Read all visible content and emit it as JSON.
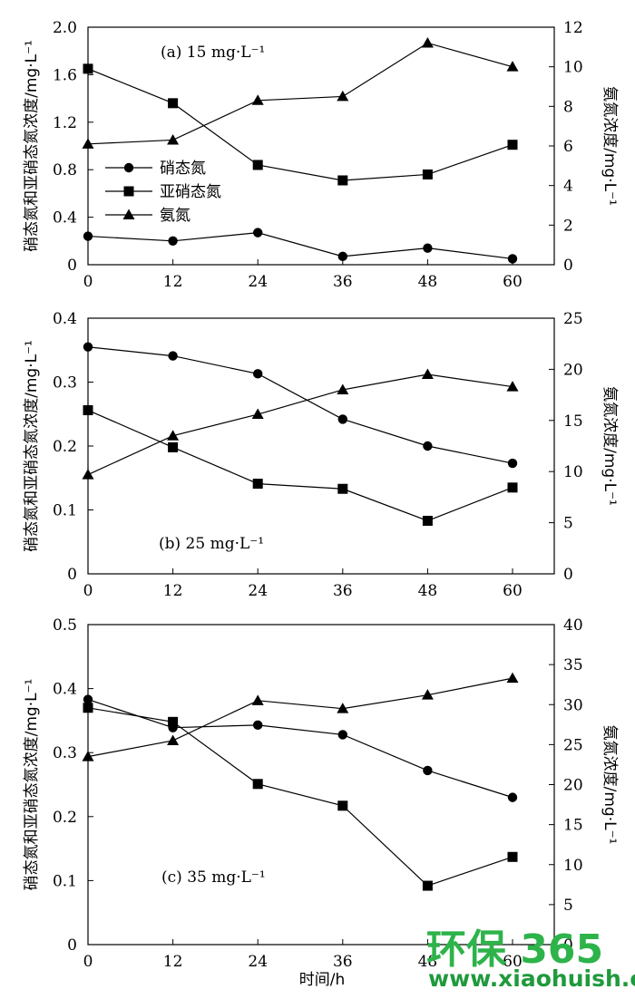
{
  "x_axis_label": "时间/h",
  "left_axis_label": "硝态氮和亚硝态氮浓度/mg·L⁻¹",
  "right_axis_label": "氨氮浓度/mg·L⁻¹",
  "legend": [
    "硝态氮",
    "亚硝态氮",
    "氨氮"
  ],
  "watermark": {
    "brand": "环保 365",
    "url": "www.xiaohuish.com",
    "color": "#2db34a"
  },
  "chart_data": [
    {
      "type": "line",
      "annotation": "(a) 15 mg·L⁻¹",
      "x": [
        0,
        12,
        24,
        36,
        48,
        60
      ],
      "xlim": [
        0,
        60
      ],
      "x_ticks": [
        0,
        12,
        24,
        36,
        48,
        60
      ],
      "ylim_left": [
        0,
        2.0
      ],
      "y_ticks_left": [
        "0",
        "0.4",
        "0.8",
        "1.2",
        "1.6",
        "2.0"
      ],
      "ylim_right": [
        0,
        12
      ],
      "y_ticks_right": [
        "0",
        "2",
        "4",
        "6",
        "8",
        "10",
        "12"
      ],
      "series": [
        {
          "name": "硝态氮",
          "axis": "left",
          "marker": "circle",
          "values": [
            0.24,
            0.2,
            0.27,
            0.07,
            0.14,
            0.05
          ]
        },
        {
          "name": "亚硝态氮",
          "axis": "left",
          "marker": "square",
          "values": [
            1.65,
            1.36,
            0.84,
            0.71,
            0.76,
            1.01
          ]
        },
        {
          "name": "氨氮",
          "axis": "right",
          "marker": "triangle",
          "values": [
            6.1,
            6.3,
            8.3,
            8.5,
            11.2,
            10.0
          ]
        }
      ]
    },
    {
      "type": "line",
      "annotation": "(b) 25 mg·L⁻¹",
      "x": [
        0,
        12,
        24,
        36,
        48,
        60
      ],
      "xlim": [
        0,
        60
      ],
      "x_ticks": [
        0,
        12,
        24,
        36,
        48,
        60
      ],
      "ylim_left": [
        0,
        0.4
      ],
      "y_ticks_left": [
        "0",
        "0.1",
        "0.2",
        "0.3",
        "0.4"
      ],
      "ylim_right": [
        0,
        25
      ],
      "y_ticks_right": [
        "0",
        "5",
        "10",
        "15",
        "20",
        "25"
      ],
      "series": [
        {
          "name": "硝态氮",
          "axis": "left",
          "marker": "circle",
          "values": [
            0.355,
            0.341,
            0.313,
            0.242,
            0.2,
            0.173
          ]
        },
        {
          "name": "亚硝态氮",
          "axis": "left",
          "marker": "square",
          "values": [
            0.256,
            0.198,
            0.141,
            0.133,
            0.083,
            0.135
          ]
        },
        {
          "name": "氨氮",
          "axis": "right",
          "marker": "triangle",
          "values": [
            9.7,
            13.5,
            15.6,
            18.0,
            19.5,
            18.3
          ]
        }
      ]
    },
    {
      "type": "line",
      "annotation": "(c) 35 mg·L⁻¹",
      "x": [
        0,
        12,
        24,
        36,
        48,
        60
      ],
      "xlim": [
        0,
        60
      ],
      "x_ticks": [
        0,
        12,
        24,
        36,
        48,
        60
      ],
      "ylim_left": [
        0,
        0.5
      ],
      "y_ticks_left": [
        "0",
        "0.1",
        "0.2",
        "0.3",
        "0.4",
        "0.5"
      ],
      "ylim_right": [
        0,
        40
      ],
      "y_ticks_right": [
        "0",
        "5",
        "10",
        "15",
        "20",
        "25",
        "30",
        "35",
        "40"
      ],
      "series": [
        {
          "name": "硝态氮",
          "axis": "left",
          "marker": "circle",
          "values": [
            0.383,
            0.339,
            0.343,
            0.328,
            0.272,
            0.23
          ]
        },
        {
          "name": "亚硝态氮",
          "axis": "left",
          "marker": "square",
          "values": [
            0.37,
            0.348,
            0.251,
            0.217,
            0.092,
            0.137
          ]
        },
        {
          "name": "氨氮",
          "axis": "right",
          "marker": "triangle",
          "values": [
            23.5,
            25.5,
            30.5,
            29.5,
            31.2,
            33.3
          ]
        }
      ]
    }
  ]
}
